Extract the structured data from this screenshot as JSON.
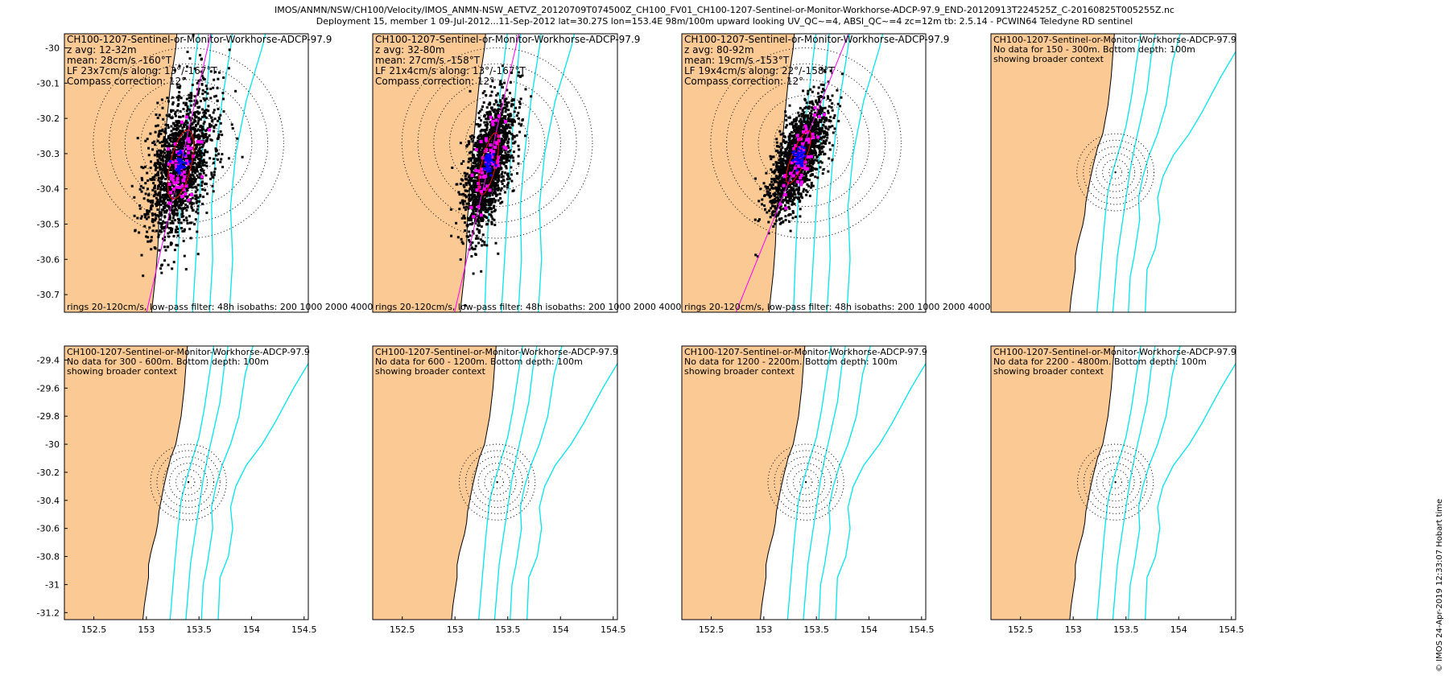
{
  "header": {
    "line1": "IMOS/ANMN/NSW/CH100/Velocity/IMOS_ANMN-NSW_AETVZ_20120709T074500Z_CH100_FV01_CH100-1207-Sentinel-or-Monitor-Workhorse-ADCP-97.9_END-20120913T224525Z_C-20160825T005255Z.nc",
    "line2": "Deployment 15, member 1 09-Jul-2012...11-Sep-2012 lat=30.27S lon=153.4E 98m/100m upward looking UV_QC~=4, ABSI_QC~=4 zc=12m tb: 2.5.14 - PCWIN64 Teledyne RD sentinel"
  },
  "credit": "© IMOS 24-Apr-2019 12:33:07 Hobart time",
  "colors": {
    "land": "#fbc993",
    "isobath": "#00e5ee",
    "scatter": "#000000",
    "daily": "#ff00ff",
    "mean": "#0000ff",
    "ellipse": "#ff0000",
    "major_axis": "#ff00ff",
    "rings": "#000000"
  },
  "chart_data": [
    {
      "type": "scatter",
      "panel": "top-1",
      "title": "CH100-1207-Sentinel-or-Monitor-Workhorse-ADCP-97.9",
      "lines": [
        "z avg: 12-32m",
        "mean: 28cm/s -160°T",
        "LF 23x7cm/s along: 13°/-167°T",
        "Compass correction: 12°"
      ],
      "footer": "rings 20-120cm/s, low-pass filter: 48h isobaths: 200 1000 2000 4000m",
      "xlim": [
        152.22,
        154.54
      ],
      "ylim": [
        -30.75,
        -29.96
      ],
      "yticks": [
        -30,
        -30.1,
        -30.2,
        -30.3,
        -30.4,
        -30.5,
        -30.6,
        -30.7
      ],
      "xticks": [],
      "center": [
        153.4,
        -30.27
      ],
      "rings_deg": [
        0.045,
        0.09,
        0.135,
        0.18,
        0.225,
        0.27
      ],
      "mean_dir_deg": -160,
      "mean_speed_deg": 0.065,
      "axis_dir_deg": -167,
      "major_deg": 0.1,
      "minor_deg": 0.03,
      "axis_len_deg": 0.48,
      "scatter_ellipse": [
        0.21,
        0.075
      ]
    },
    {
      "type": "scatter",
      "panel": "top-2",
      "title": "CH100-1207-Sentinel-or-Monitor-Workhorse-ADCP-97.9",
      "lines": [
        "z avg: 32-80m",
        "mean: 27cm/s -158°T",
        "LF 21x4cm/s along: 13°/-167°T",
        "Compass correction: 12°"
      ],
      "footer": "rings 20-120cm/s, low-pass filter: 48h isobaths: 200 1000 2000 4000m",
      "xlim": [
        152.22,
        154.54
      ],
      "ylim": [
        -30.75,
        -29.96
      ],
      "yticks": [],
      "xticks": [],
      "center": [
        153.4,
        -30.27
      ],
      "rings_deg": [
        0.045,
        0.09,
        0.135,
        0.18,
        0.225,
        0.27
      ],
      "mean_dir_deg": -158,
      "mean_speed_deg": 0.063,
      "axis_dir_deg": -167,
      "major_deg": 0.09,
      "minor_deg": 0.02,
      "axis_len_deg": 0.48,
      "scatter_ellipse": [
        0.19,
        0.05
      ]
    },
    {
      "type": "scatter",
      "panel": "top-3",
      "title": "CH100-1207-Sentinel-or-Monitor-Workhorse-ADCP-97.9",
      "lines": [
        "z avg: 80-92m",
        "mean: 19cm/s -153°T",
        "LF 19x4cm/s along: 22°/-158°T",
        "Compass correction: 12°"
      ],
      "footer": "rings 20-120cm/s, low-pass filter: 48h isobaths: 200 1000 2000 4000m",
      "xlim": [
        152.22,
        154.54
      ],
      "ylim": [
        -30.75,
        -29.96
      ],
      "yticks": [],
      "xticks": [],
      "center": [
        153.4,
        -30.27
      ],
      "rings_deg": [
        0.045,
        0.09,
        0.135,
        0.18,
        0.225,
        0.27
      ],
      "mean_dir_deg": -153,
      "mean_speed_deg": 0.045,
      "axis_dir_deg": -158,
      "major_deg": 0.08,
      "minor_deg": 0.02,
      "axis_len_deg": 0.48,
      "scatter_ellipse": [
        0.17,
        0.05
      ]
    },
    {
      "type": "scatter",
      "panel": "top-4",
      "title": "CH100-1207-Sentinel-or-Monitor-Workhorse-ADCP-97.9",
      "lines": [
        "No data for 150 - 300m. Bottom depth: 100m",
        "showing broader context"
      ],
      "footer": "",
      "xlim": [
        152.22,
        154.54
      ],
      "ylim": [
        -31.25,
        -29.3
      ],
      "yticks": [],
      "xticks": [],
      "center": [
        153.4,
        -30.27
      ],
      "rings_deg": [
        0.045,
        0.09,
        0.135,
        0.18,
        0.225,
        0.27
      ]
    },
    {
      "type": "scatter",
      "panel": "bottom-1",
      "title": "CH100-1207-Sentinel-or-Monitor-Workhorse-ADCP-97.9",
      "lines": [
        "No data for 300 - 600m. Bottom depth: 100m",
        "showing broader context"
      ],
      "footer": "",
      "xlim": [
        152.22,
        154.54
      ],
      "ylim": [
        -31.25,
        -29.3
      ],
      "yticks": [
        -29.4,
        -29.6,
        -29.8,
        -30,
        -30.2,
        -30.4,
        -30.6,
        -30.8,
        -31,
        -31.2
      ],
      "xticks": [
        152.5,
        153,
        153.5,
        154,
        154.5
      ],
      "center": [
        153.4,
        -30.27
      ],
      "rings_deg": [
        0.045,
        0.09,
        0.135,
        0.18,
        0.225,
        0.27
      ]
    },
    {
      "type": "scatter",
      "panel": "bottom-2",
      "title": "CH100-1207-Sentinel-or-Monitor-Workhorse-ADCP-97.9",
      "lines": [
        "No data for 600 - 1200m. Bottom depth: 100m",
        "showing broader context"
      ],
      "footer": "",
      "xlim": [
        152.22,
        154.54
      ],
      "ylim": [
        -31.25,
        -29.3
      ],
      "yticks": [],
      "xticks": [
        152.5,
        153,
        153.5,
        154,
        154.5
      ],
      "center": [
        153.4,
        -30.27
      ],
      "rings_deg": [
        0.045,
        0.09,
        0.135,
        0.18,
        0.225,
        0.27
      ]
    },
    {
      "type": "scatter",
      "panel": "bottom-3",
      "title": "CH100-1207-Sentinel-or-Monitor-Workhorse-ADCP-97.9",
      "lines": [
        "No data for 1200 - 2200m. Bottom depth: 100m",
        "showing broader context"
      ],
      "footer": "",
      "xlim": [
        152.22,
        154.54
      ],
      "ylim": [
        -31.25,
        -29.3
      ],
      "yticks": [],
      "xticks": [
        152.5,
        153,
        153.5,
        154,
        154.5
      ],
      "center": [
        153.4,
        -30.27
      ],
      "rings_deg": [
        0.045,
        0.09,
        0.135,
        0.18,
        0.225,
        0.27
      ]
    },
    {
      "type": "scatter",
      "panel": "bottom-4",
      "title": "CH100-1207-Sentinel-or-Monitor-Workhorse-ADCP-97.9",
      "lines": [
        "No data for 2200 - 4800m. Bottom depth: 100m",
        "showing broader context"
      ],
      "footer": "",
      "xlim": [
        152.22,
        154.54
      ],
      "ylim": [
        -31.25,
        -29.3
      ],
      "yticks": [],
      "xticks": [
        152.5,
        153,
        153.5,
        154,
        154.5
      ],
      "center": [
        153.4,
        -30.27
      ],
      "rings_deg": [
        0.045,
        0.09,
        0.135,
        0.18,
        0.225,
        0.27
      ]
    }
  ]
}
